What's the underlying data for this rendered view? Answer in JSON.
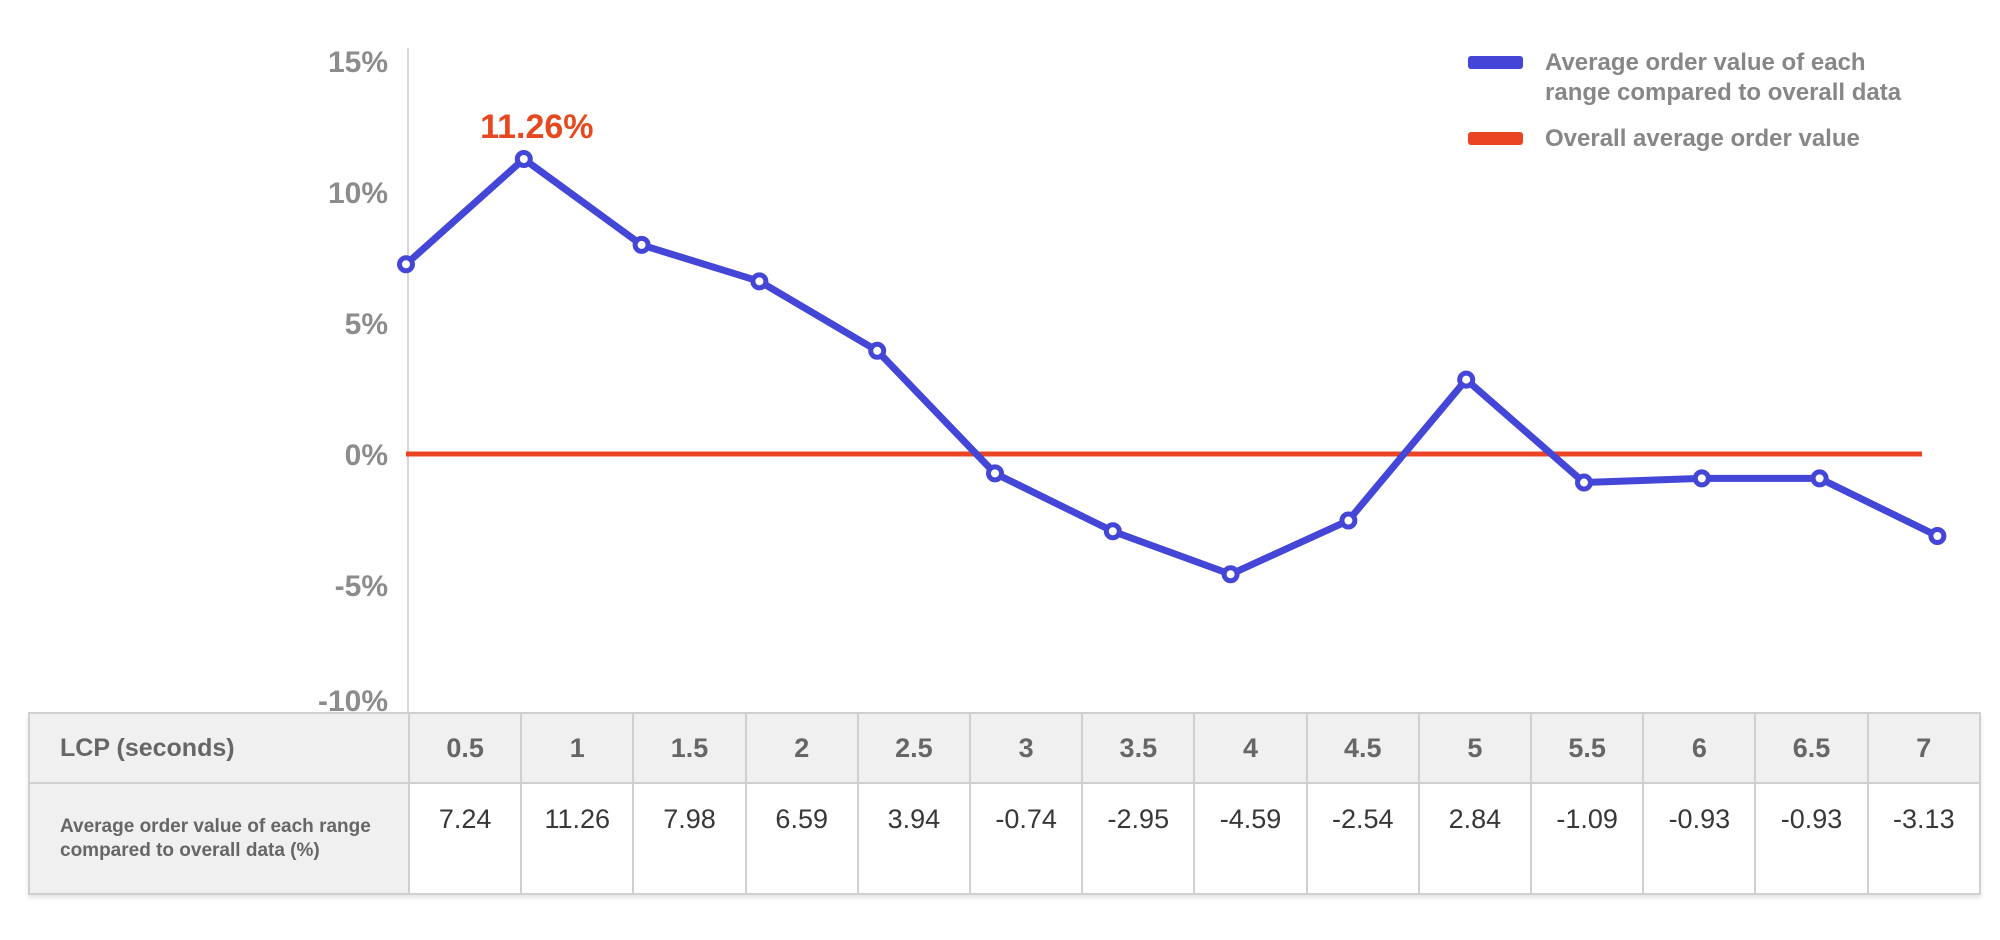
{
  "colors": {
    "series_blue": "#4346d6",
    "baseline_red": "#ea4423",
    "axis_line": "#d6d6d6",
    "axis_text": "#8c8c8c",
    "legend_text": "#878787",
    "annotation_red": "#e8481f",
    "table_header_text": "#666666",
    "table_value_text": "#383838",
    "table_header_bg": "#f0f0f0",
    "table_border": "#d0d0d0"
  },
  "chart_data": {
    "type": "line",
    "x_label": "LCP (seconds)",
    "x": [
      0.5,
      1,
      1.5,
      2,
      2.5,
      3,
      3.5,
      4,
      4.5,
      5,
      5.5,
      6,
      6.5,
      7
    ],
    "series": [
      {
        "name": "Average order value of each range compared to overall data",
        "color": "#4346d6",
        "values": [
          7.24,
          11.26,
          7.98,
          6.59,
          3.94,
          -0.74,
          -2.95,
          -4.59,
          -2.54,
          2.84,
          -1.09,
          -0.93,
          -0.93,
          -3.13
        ]
      }
    ],
    "baseline": {
      "name": "Overall average order value",
      "color": "#ea4423",
      "value": 0
    },
    "yticks": {
      "values": [
        15,
        10,
        5,
        0,
        -5,
        -10
      ],
      "labels": [
        "15%",
        "10%",
        "5%",
        "0%",
        "-5%",
        "-10%"
      ]
    },
    "ylim": [
      -10,
      15
    ],
    "grid": false,
    "legend_position": "top-right",
    "annotation": {
      "text": "11.26%",
      "at_x": 1,
      "at_y": 11.26
    }
  },
  "legend": {
    "items": [
      {
        "swatch_color": "#4346d6",
        "swatch_name": "blue-line-swatch",
        "lines": [
          "Average order value of each",
          "range compared to overall data"
        ]
      },
      {
        "swatch_color": "#ea4423",
        "swatch_name": "red-line-swatch",
        "lines": [
          "Overall average order value"
        ]
      }
    ]
  },
  "table": {
    "rows": [
      {
        "header": "LCP (seconds)",
        "values": [
          "0.5",
          "1",
          "1.5",
          "2",
          "2.5",
          "3",
          "3.5",
          "4",
          "4.5",
          "5",
          "5.5",
          "6",
          "6.5",
          "7"
        ]
      },
      {
        "header": "Average order value of each range compared to overall data (%)",
        "values": [
          "7.24",
          "11.26",
          "7.98",
          "6.59",
          "3.94",
          "-0.74",
          "-2.95",
          "-4.59",
          "-2.54",
          "2.84",
          "-1.09",
          "-0.93",
          "-0.93",
          "-3.13"
        ]
      }
    ]
  }
}
